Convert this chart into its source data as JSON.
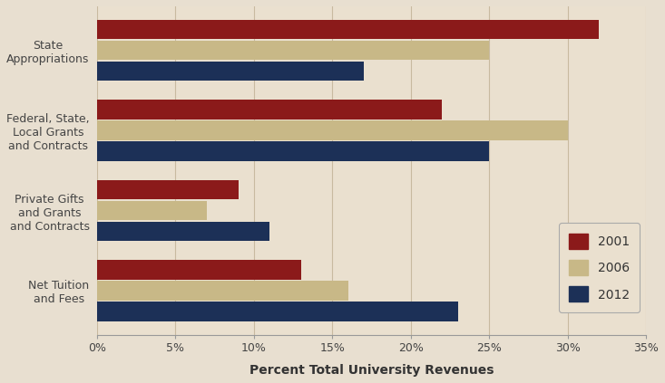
{
  "categories": [
    "State\nAppropriations",
    "Federal, State,\nLocal Grants\nand Contracts",
    "Private Gifts\nand Grants\nand Contracts",
    "Net Tuition\nand Fees"
  ],
  "series": {
    "2001": [
      32,
      22,
      9,
      13
    ],
    "2006": [
      25,
      30,
      7,
      16
    ],
    "2012": [
      17,
      25,
      11,
      23
    ]
  },
  "colors": {
    "2001": "#8B1A1A",
    "2006": "#C8B887",
    "2012": "#1C3057"
  },
  "background_color": "#E8DFD0",
  "plot_bg_color": "#EAE0CF",
  "xlabel": "Percent Total University Revenues",
  "xlim": [
    0,
    35
  ],
  "xticks": [
    0,
    5,
    10,
    15,
    20,
    25,
    30,
    35
  ],
  "xtick_labels": [
    "0%",
    "5%",
    "10%",
    "15%",
    "20%",
    "25%",
    "30%",
    "35%"
  ],
  "bar_height": 0.26,
  "legend_labels": [
    "2001",
    "2006",
    "2012"
  ],
  "grid_color": "#C8BAA0"
}
